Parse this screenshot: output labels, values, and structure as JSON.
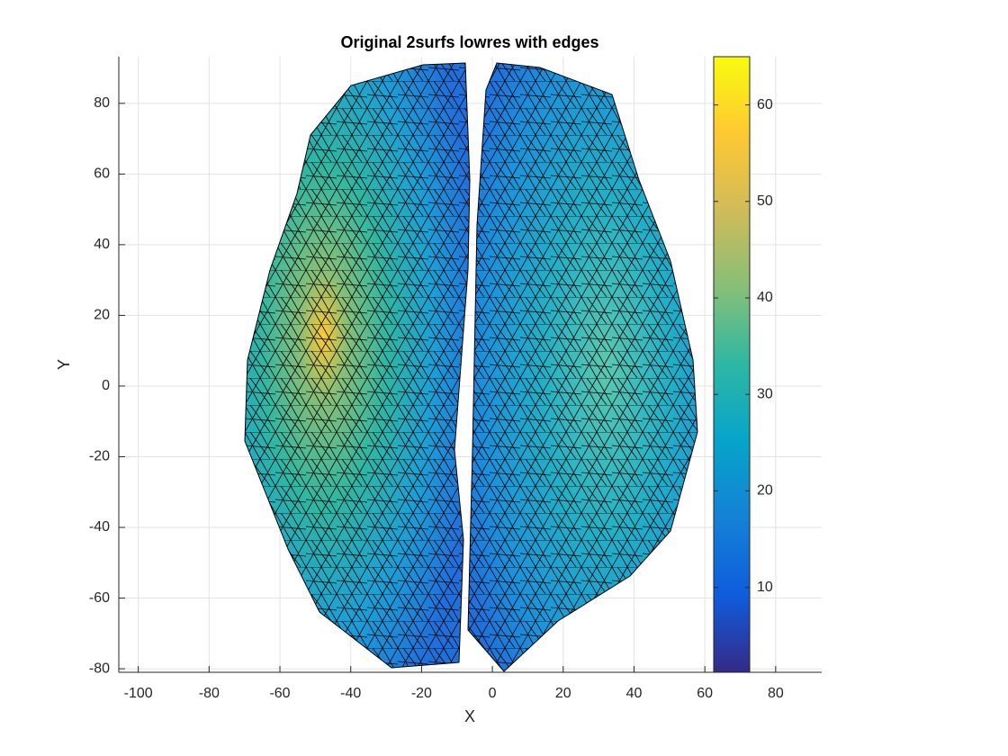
{
  "chart_data": {
    "type": "surface",
    "title": "Original 2surfs lowres with edges",
    "x_label": "X",
    "y_label": "Y",
    "xlim": [
      -105.5,
      93
    ],
    "xticks": [
      -100,
      -80,
      -60,
      -40,
      -20,
      0,
      20,
      40,
      60,
      80
    ],
    "ylim": [
      -81,
      93.2
    ],
    "yticks": [
      -80,
      -60,
      -40,
      -20,
      0,
      20,
      40,
      60,
      80
    ],
    "grid": true,
    "colorbar": {
      "lim": [
        1.2,
        65
      ],
      "ticks": [
        10,
        20,
        30,
        40,
        50,
        60
      ],
      "colormap": [
        "#352a87",
        "#0f5cdd",
        "#1481d6",
        "#06a4ca",
        "#2eb7a4",
        "#87bf77",
        "#d1bb59",
        "#fec832",
        "#f9fb0e"
      ]
    }
  }
}
